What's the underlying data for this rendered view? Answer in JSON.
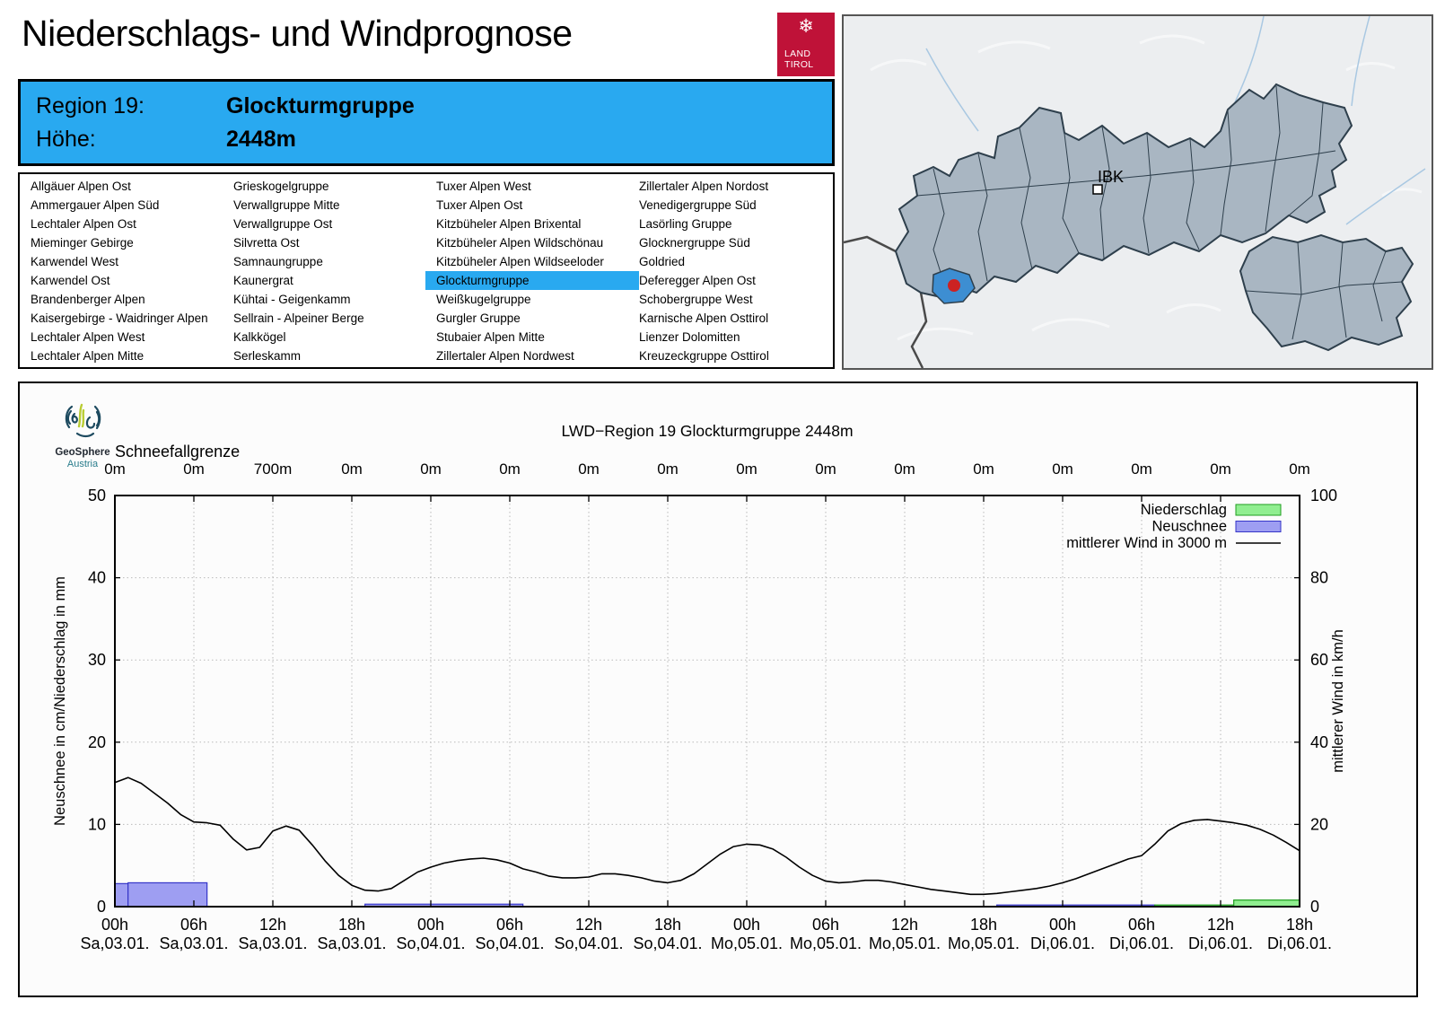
{
  "header": {
    "title": "Niederschlags- und Windprognose",
    "logo": {
      "line1": "LAND",
      "line2": "TIROL",
      "snowflake": "❄"
    }
  },
  "region_info": {
    "region_label": "Region 19:",
    "region_name": "Glockturmgruppe",
    "altitude_label": "Höhe:",
    "altitude_value": "2448m"
  },
  "region_list": {
    "selected": "Glockturmgruppe",
    "columns": [
      [
        "Allgäuer Alpen Ost",
        "Ammergauer Alpen Süd",
        "Lechtaler Alpen Ost",
        "Mieminger Gebirge",
        "Karwendel West",
        "Karwendel Ost",
        "Brandenberger Alpen",
        "Kaisergebirge - Waidringer Alpen",
        "Lechtaler Alpen West",
        "Lechtaler Alpen Mitte"
      ],
      [
        "Grieskogelgruppe",
        "Verwallgruppe Mitte",
        "Verwallgruppe Ost",
        "Silvretta Ost",
        "Samnaungruppe",
        "Kaunergrat",
        "Kühtai - Geigenkamm",
        "Sellrain - Alpeiner Berge",
        "Kalkkögel",
        "Serleskamm"
      ],
      [
        "Tuxer Alpen West",
        "Tuxer Alpen Ost",
        "Kitzbüheler Alpen Brixental",
        "Kitzbüheler Alpen Wildschönau",
        "Kitzbüheler Alpen Wildseeloder",
        "Glockturmgruppe",
        "Weißkugelgruppe",
        "Gurgler Gruppe",
        "Stubaier Alpen Mitte",
        "Zillertaler Alpen Nordwest"
      ],
      [
        "Zillertaler Alpen Nordost",
        "Venedigergruppe Süd",
        "Lasörling Gruppe",
        "Glocknergruppe Süd",
        "Goldried",
        "Deferegger Alpen Ost",
        "Schobergruppe West",
        "Karnische Alpen Osttirol",
        "Lienzer Dolomitten",
        "Kreuzeckgruppe Osttirol"
      ]
    ]
  },
  "map": {
    "marker_label": "IBK"
  },
  "geosphere": {
    "name": "GeoSphere",
    "country": "Austria"
  },
  "colors": {
    "accent_blue": "#29a9f0",
    "logo_red": "#bf1238",
    "precip_green_fill": "#90ee90",
    "precip_green_border": "#1f9e1f",
    "snow_blue_fill": "#9e9ef2",
    "snow_blue_border": "#3535c8",
    "wind_line": "#000000",
    "map_region_fill": "#a9b6c2",
    "map_region_border": "#2e3f4c",
    "map_highlight_fill": "#3d8ed2",
    "map_marker_red": "#cc2222"
  },
  "chart_data": {
    "type": "bar+line",
    "title": "LWD−Region 19 Glockturmgruppe 2448m",
    "snowline": {
      "label": "Schneefallgrenze",
      "values": [
        "0m",
        "0m",
        "700m",
        "0m",
        "0m",
        "0m",
        "0m",
        "0m",
        "0m",
        "0m",
        "0m",
        "0m",
        "0m",
        "0m",
        "0m",
        "0m"
      ]
    },
    "x_ticks": [
      {
        "time": "00h",
        "date": "Sa,03.01."
      },
      {
        "time": "06h",
        "date": "Sa,03.01."
      },
      {
        "time": "12h",
        "date": "Sa,03.01."
      },
      {
        "time": "18h",
        "date": "Sa,03.01."
      },
      {
        "time": "00h",
        "date": "So,04.01."
      },
      {
        "time": "06h",
        "date": "So,04.01."
      },
      {
        "time": "12h",
        "date": "So,04.01."
      },
      {
        "time": "18h",
        "date": "So,04.01."
      },
      {
        "time": "00h",
        "date": "Mo,05.01."
      },
      {
        "time": "06h",
        "date": "Mo,05.01."
      },
      {
        "time": "12h",
        "date": "Mo,05.01."
      },
      {
        "time": "18h",
        "date": "Mo,05.01."
      },
      {
        "time": "00h",
        "date": "Di,06.01."
      },
      {
        "time": "06h",
        "date": "Di,06.01."
      },
      {
        "time": "12h",
        "date": "Di,06.01."
      },
      {
        "time": "18h",
        "date": "Di,06.01."
      }
    ],
    "x_hours_range": [
      0,
      90
    ],
    "y_left": {
      "label": "Neuschnee in cm/Niederschlag in mm",
      "ticks": [
        0,
        10,
        20,
        30,
        40,
        50
      ],
      "range": [
        0,
        50
      ],
      "grid": true
    },
    "y_right": {
      "label": "mittlerer Wind in km/h",
      "ticks": [
        0,
        20,
        40,
        60,
        80,
        100
      ],
      "range": [
        0,
        100
      ]
    },
    "legend_position": "top-right-inside",
    "legend": [
      {
        "label": "Niederschlag",
        "swatch": "rect",
        "fill": "#90ee90",
        "border": "#1f9e1f"
      },
      {
        "label": "Neuschnee",
        "swatch": "rect",
        "fill": "#9e9ef2",
        "border": "#3535c8"
      },
      {
        "label": "mittlerer Wind in 3000 m",
        "swatch": "line",
        "stroke": "#000000"
      }
    ],
    "series": [
      {
        "name": "Neuschnee",
        "type": "bar",
        "unit": "cm",
        "fill": "#9e9ef2",
        "border": "#3535c8",
        "bars": [
          {
            "from_h": 0,
            "to_h": 1,
            "value": 2.8
          },
          {
            "from_h": 1,
            "to_h": 7,
            "value": 2.9
          },
          {
            "from_h": 19,
            "to_h": 31,
            "value": 0.3
          },
          {
            "from_h": 67,
            "to_h": 79,
            "value": 0.2
          }
        ]
      },
      {
        "name": "Niederschlag",
        "type": "bar",
        "unit": "mm",
        "fill": "#90ee90",
        "border": "#1f9e1f",
        "bars": [
          {
            "from_h": 79,
            "to_h": 85,
            "value": 0.2
          },
          {
            "from_h": 85,
            "to_h": 90,
            "value": 0.8
          }
        ]
      },
      {
        "name": "mittlerer Wind in 3000 m",
        "type": "line",
        "unit": "km/h",
        "stroke": "#000000",
        "x_hours": [
          0,
          1,
          2,
          3,
          4,
          5,
          6,
          7,
          8,
          9,
          10,
          11,
          12,
          13,
          14,
          15,
          16,
          17,
          18,
          19,
          20,
          21,
          22,
          23,
          24,
          25,
          26,
          27,
          28,
          29,
          30,
          31,
          32,
          33,
          34,
          35,
          36,
          37,
          38,
          39,
          40,
          41,
          42,
          43,
          44,
          45,
          46,
          47,
          48,
          49,
          50,
          51,
          52,
          53,
          54,
          55,
          56,
          57,
          58,
          59,
          60,
          61,
          62,
          63,
          64,
          65,
          66,
          67,
          68,
          69,
          70,
          71,
          72,
          73,
          74,
          75,
          76,
          77,
          78,
          79,
          80,
          81,
          82,
          83,
          84,
          85,
          86,
          87,
          88,
          89,
          90
        ],
        "values_kmh": [
          30.2,
          31.4,
          30.0,
          27.6,
          25.2,
          22.4,
          20.6,
          20.4,
          19.8,
          16.4,
          13.8,
          14.4,
          18.4,
          19.6,
          18.6,
          15.0,
          11.0,
          7.6,
          5.2,
          4.0,
          3.8,
          4.4,
          6.4,
          8.4,
          9.6,
          10.6,
          11.2,
          11.6,
          11.8,
          11.4,
          10.6,
          9.2,
          8.4,
          7.4,
          7.0,
          7.0,
          7.2,
          8.0,
          8.0,
          7.6,
          7.0,
          6.2,
          5.8,
          6.4,
          8.0,
          10.4,
          12.8,
          14.6,
          15.2,
          15.0,
          14.0,
          12.0,
          9.6,
          7.6,
          6.2,
          5.8,
          6.0,
          6.4,
          6.4,
          6.0,
          5.4,
          4.8,
          4.2,
          3.8,
          3.4,
          3.0,
          3.0,
          3.2,
          3.6,
          4.0,
          4.4,
          5.0,
          5.8,
          6.8,
          8.0,
          9.2,
          10.4,
          11.6,
          12.4,
          15.2,
          18.4,
          20.2,
          21.0,
          21.2,
          20.8,
          20.4,
          19.8,
          18.8,
          17.4,
          15.6,
          13.6
        ]
      }
    ]
  }
}
